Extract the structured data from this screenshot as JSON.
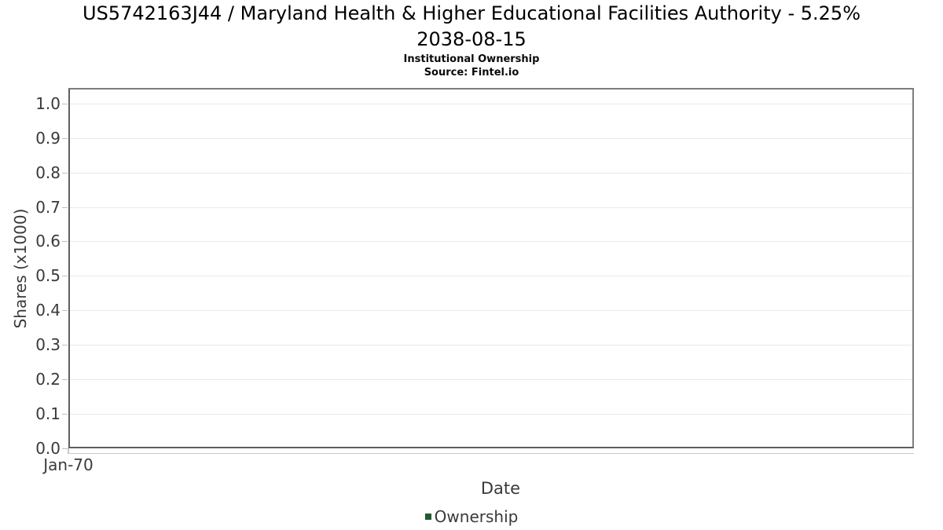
{
  "header": {
    "title_line1": "US5742163J44 / Maryland Health & Higher Educational Facilities Authority - 5.25%",
    "title_line2": "2038-08-15",
    "subtitle": "Institutional Ownership",
    "source": "Source: Fintel.io"
  },
  "chart_data": {
    "type": "line",
    "title": "US5742163J44 / Maryland Health & Higher Educational Facilities Authority - 5.25% 2038-08-15",
    "subtitle": "Institutional Ownership",
    "source": "Source: Fintel.io",
    "xlabel": "Date",
    "ylabel": "Shares (x1000)",
    "ylim": [
      0.0,
      1.045
    ],
    "y_ticks": [
      0.0,
      0.1,
      0.2,
      0.3,
      0.4,
      0.5,
      0.6,
      0.7,
      0.8,
      0.9,
      1.0
    ],
    "y_tick_labels": [
      "0.0",
      "0.1",
      "0.2",
      "0.3",
      "0.4",
      "0.5",
      "0.6",
      "0.7",
      "0.8",
      "0.9",
      "1.0"
    ],
    "x_tick_labels": [
      "Jan-70"
    ],
    "grid": "horizontal-only",
    "legend": {
      "position": "bottom-center",
      "entries": [
        {
          "label": "Ownership",
          "marker": "square",
          "color": "#235a2d"
        }
      ]
    },
    "series": [
      {
        "name": "Ownership",
        "x": [],
        "values": []
      }
    ]
  }
}
